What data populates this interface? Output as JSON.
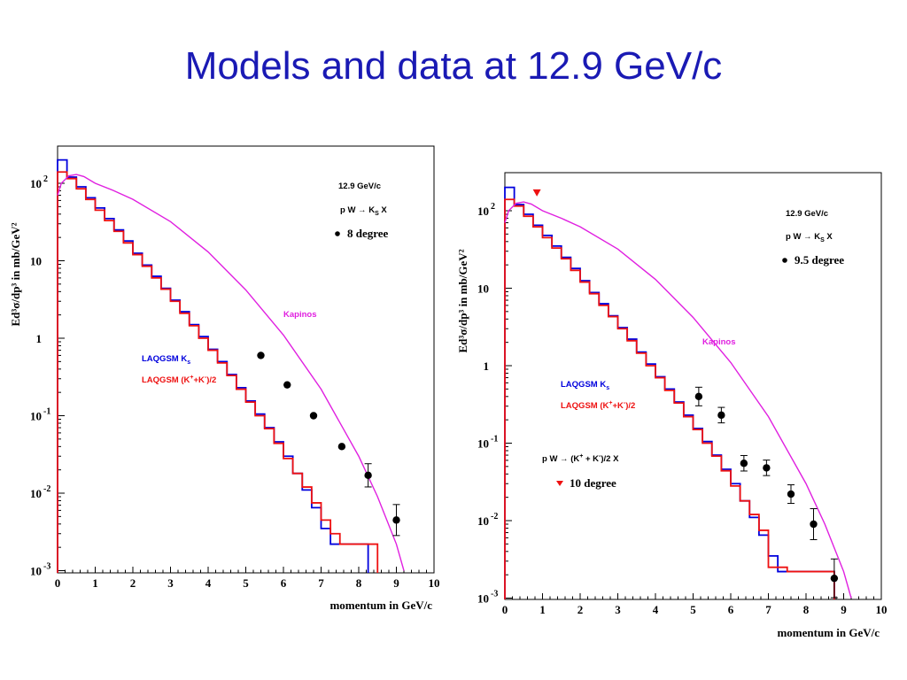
{
  "slide": {
    "title": "Models and data at 12.9 GeV/c"
  },
  "colors": {
    "title": "#1a1ab4",
    "laqgsm_ks": "#0000dd",
    "laqgsm_kpm": "#ee1111",
    "kapinos": "#e020e0",
    "data": "#000000",
    "triangle": "#ee1111"
  },
  "chart_data": [
    {
      "type": "line",
      "xlabel": "momentum in GeV/c",
      "ylabel": "Ed³σ/dp³ in mb/GeV²",
      "xlim": [
        0,
        10
      ],
      "ylim": [
        0.001,
        200
      ],
      "yscale": "log",
      "x_ticks": [
        "0",
        "1",
        "2",
        "3",
        "4",
        "5",
        "6",
        "7",
        "8",
        "9",
        "10"
      ],
      "y_ticks": [
        {
          "value": 100,
          "base": "10",
          "exp": "2"
        },
        {
          "value": 10,
          "base": "10",
          "exp": ""
        },
        {
          "value": 1,
          "base": "1",
          "exp": ""
        },
        {
          "value": 0.1,
          "base": "10",
          "exp": "-1"
        },
        {
          "value": 0.01,
          "base": "10",
          "exp": "-2"
        },
        {
          "value": 0.001,
          "base": "10",
          "exp": "-3"
        }
      ],
      "annotations": {
        "energy": "12.9 GeV/c",
        "reaction_pre": "p W → K",
        "reaction_sub": "S",
        "reaction_post": " X",
        "angle": "8 degree",
        "kapinos": "Kapinos",
        "laqgsm_ks_pre": "LAQGSM K",
        "laqgsm_ks_sub": "s",
        "laqgsm_kpm_pre": "LAQGSM (K",
        "laqgsm_kpm_sup1": "+",
        "laqgsm_kpm_mid": "+K",
        "laqgsm_kpm_sup2": "-",
        "laqgsm_kpm_post": ")/2"
      },
      "series": [
        {
          "name": "LAQGSM K_s",
          "color": "#0000dd",
          "step_width": 0.25,
          "values": [
            200,
            120,
            90,
            65,
            48,
            35,
            25,
            18,
            12.5,
            8.8,
            6.3,
            4.4,
            3.1,
            2.2,
            1.5,
            1.05,
            0.72,
            0.5,
            0.34,
            0.23,
            0.155,
            0.105,
            0.07,
            0.046,
            0.03,
            0.018,
            0.011,
            0.0065,
            0.0035,
            0.0022,
            0.0022,
            0.0022,
            0.0022
          ]
        },
        {
          "name": "LAQGSM (K+ + K-)/2",
          "color": "#ee1111",
          "step_width": 0.25,
          "values": [
            140,
            115,
            85,
            62,
            45,
            33,
            24,
            17,
            12,
            8.5,
            6.0,
            4.3,
            3.0,
            2.1,
            1.45,
            1.0,
            0.7,
            0.48,
            0.33,
            0.22,
            0.15,
            0.1,
            0.068,
            0.044,
            0.028,
            0.018,
            0.012,
            0.0075,
            0.0045,
            0.003,
            0.0022,
            0.0022,
            0.0022,
            0.0022
          ]
        },
        {
          "name": "Kapinos",
          "color": "#e020e0",
          "x": [
            0.0,
            0.1,
            0.3,
            0.5,
            0.7,
            1.0,
            1.5,
            2.0,
            3.0,
            4.0,
            5.0,
            6.0,
            7.0,
            8.0,
            8.5,
            9.0,
            9.2
          ],
          "y": [
            70,
            100,
            125,
            130,
            122,
            100,
            80,
            62,
            32,
            13,
            4.2,
            1.1,
            0.22,
            0.03,
            0.009,
            0.0022,
            0.001
          ]
        }
      ],
      "data_points": [
        {
          "x": 5.4,
          "y": 0.6,
          "err": 0
        },
        {
          "x": 6.1,
          "y": 0.25,
          "err": 0
        },
        {
          "x": 6.8,
          "y": 0.1,
          "err": 0
        },
        {
          "x": 7.55,
          "y": 0.04,
          "err": 0
        },
        {
          "x": 8.25,
          "y": 0.017,
          "err": 0.15
        },
        {
          "x": 9.0,
          "y": 0.0045,
          "err": 0.2
        }
      ]
    },
    {
      "type": "line",
      "xlabel": "momentum in GeV/c",
      "ylabel": "Ed³σ/dp³ in mb/GeV²",
      "xlim": [
        0,
        10
      ],
      "ylim": [
        0.001,
        200
      ],
      "yscale": "log",
      "x_ticks": [
        "0",
        "1",
        "2",
        "3",
        "4",
        "5",
        "6",
        "7",
        "8",
        "9",
        "10"
      ],
      "y_ticks": [
        {
          "value": 100,
          "base": "10",
          "exp": "2"
        },
        {
          "value": 10,
          "base": "10",
          "exp": ""
        },
        {
          "value": 1,
          "base": "1",
          "exp": ""
        },
        {
          "value": 0.1,
          "base": "10",
          "exp": "-1"
        },
        {
          "value": 0.01,
          "base": "10",
          "exp": "-2"
        },
        {
          "value": 0.001,
          "base": "10",
          "exp": "-3"
        }
      ],
      "annotations": {
        "energy": "12.9 GeV/c",
        "reaction_pre": "p W → K",
        "reaction_sub": "S",
        "reaction_post": " X",
        "angle": "9.5 degree",
        "kapinos": "Kapinos",
        "laqgsm_ks_pre": "LAQGSM K",
        "laqgsm_ks_sub": "s",
        "laqgsm_kpm_pre": "LAQGSM (K",
        "laqgsm_kpm_sup1": "+",
        "laqgsm_kpm_mid": "+K",
        "laqgsm_kpm_sup2": "-",
        "laqgsm_kpm_post": ")/2",
        "reaction2_pre": "p W → (K",
        "reaction2_sup1": "+",
        "reaction2_mid": " + K",
        "reaction2_sup2": "-",
        "reaction2_post": ")/2 X",
        "angle2": "10 degree"
      },
      "series": [
        {
          "name": "LAQGSM K_s",
          "color": "#0000dd",
          "step_width": 0.25,
          "values": [
            200,
            120,
            90,
            65,
            48,
            35,
            25,
            18,
            12.5,
            8.8,
            6.3,
            4.4,
            3.1,
            2.2,
            1.5,
            1.05,
            0.72,
            0.5,
            0.34,
            0.23,
            0.155,
            0.105,
            0.07,
            0.046,
            0.03,
            0.018,
            0.011,
            0.0065,
            0.0035,
            0.0022,
            0.0022,
            0.0022,
            0.0022,
            0.0022,
            0.0022
          ]
        },
        {
          "name": "LAQGSM (K+ + K-)/2",
          "color": "#ee1111",
          "step_width": 0.25,
          "values": [
            140,
            115,
            85,
            62,
            45,
            33,
            24,
            17,
            12,
            8.5,
            6.0,
            4.3,
            3.0,
            2.1,
            1.45,
            1.0,
            0.7,
            0.48,
            0.33,
            0.22,
            0.15,
            0.1,
            0.068,
            0.044,
            0.028,
            0.018,
            0.012,
            0.0075,
            0.0025,
            0.0025,
            0.0022,
            0.0022,
            0.0022,
            0.0022,
            0.0022
          ]
        },
        {
          "name": "Kapinos",
          "color": "#e020e0",
          "x": [
            0.0,
            0.1,
            0.3,
            0.5,
            0.7,
            1.0,
            1.5,
            2.0,
            3.0,
            4.0,
            5.0,
            6.0,
            7.0,
            8.0,
            8.5,
            9.0,
            9.2
          ],
          "y": [
            70,
            100,
            125,
            130,
            122,
            100,
            80,
            62,
            32,
            13,
            4.2,
            1.1,
            0.22,
            0.03,
            0.009,
            0.0022,
            0.001
          ]
        }
      ],
      "data_points": [
        {
          "x": 5.15,
          "y": 0.4,
          "err": 0.12
        },
        {
          "x": 5.75,
          "y": 0.23,
          "err": 0.1
        },
        {
          "x": 6.35,
          "y": 0.055,
          "err": 0.1
        },
        {
          "x": 6.95,
          "y": 0.048,
          "err": 0.1
        },
        {
          "x": 7.6,
          "y": 0.022,
          "err": 0.12
        },
        {
          "x": 8.2,
          "y": 0.009,
          "err": 0.2
        },
        {
          "x": 8.75,
          "y": 0.0018,
          "err": 0.25
        }
      ],
      "triangle_points": [
        {
          "x": 0.85,
          "y": 170
        }
      ]
    }
  ]
}
